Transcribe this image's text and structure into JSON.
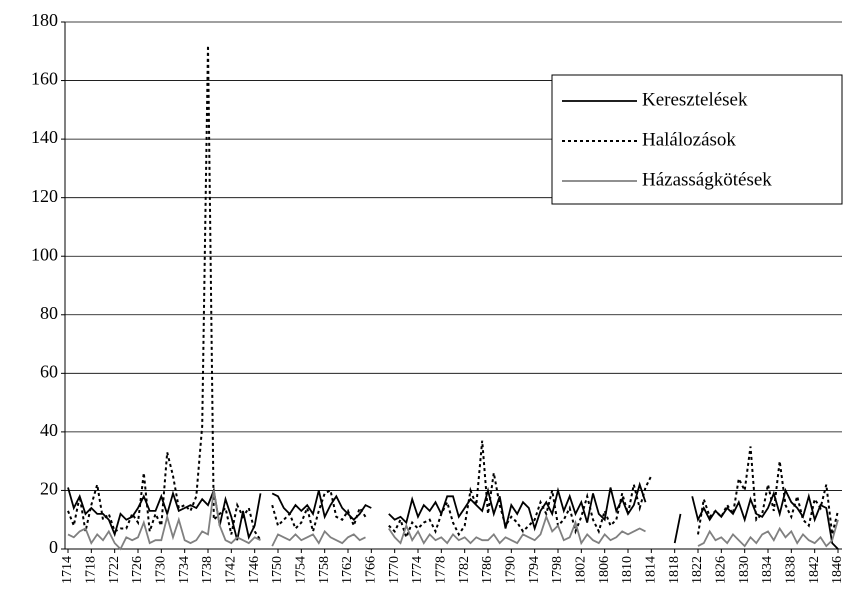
{
  "chart_data": {
    "type": "line",
    "x": [
      1714,
      1715,
      1716,
      1717,
      1718,
      1719,
      1720,
      1721,
      1722,
      1723,
      1724,
      1725,
      1726,
      1727,
      1728,
      1729,
      1730,
      1731,
      1732,
      1733,
      1734,
      1735,
      1736,
      1737,
      1738,
      1739,
      1740,
      1741,
      1742,
      1743,
      1744,
      1745,
      1746,
      1747,
      1748,
      1749,
      1750,
      1751,
      1752,
      1753,
      1754,
      1755,
      1756,
      1757,
      1758,
      1759,
      1760,
      1761,
      1762,
      1763,
      1764,
      1765,
      1766,
      1767,
      1768,
      1769,
      1770,
      1771,
      1772,
      1773,
      1774,
      1775,
      1776,
      1777,
      1778,
      1779,
      1780,
      1781,
      1782,
      1783,
      1784,
      1785,
      1786,
      1787,
      1788,
      1789,
      1790,
      1791,
      1792,
      1793,
      1794,
      1795,
      1796,
      1797,
      1798,
      1799,
      1800,
      1801,
      1802,
      1803,
      1804,
      1805,
      1806,
      1807,
      1808,
      1809,
      1810,
      1811,
      1812,
      1813,
      1814,
      1815,
      1816,
      1817,
      1818,
      1819,
      1820,
      1821,
      1822,
      1823,
      1824,
      1825,
      1826,
      1827,
      1828,
      1829,
      1830,
      1831,
      1832,
      1833,
      1834,
      1835,
      1836,
      1837,
      1838,
      1839,
      1840,
      1841,
      1842,
      1843,
      1844,
      1845,
      1846
    ],
    "series": [
      {
        "name": "Keresztelések",
        "color": "#000000",
        "dash": "solid",
        "values": [
          21,
          14,
          18,
          12,
          14,
          12,
          12,
          10,
          5,
          12,
          10,
          11,
          14,
          18,
          13,
          13,
          18,
          12,
          19,
          13,
          14,
          15,
          14,
          17,
          15,
          20,
          8,
          17,
          11,
          3,
          13,
          4,
          8,
          19,
          null,
          19,
          18,
          14,
          12,
          15,
          13,
          15,
          12,
          20,
          11,
          15,
          18,
          14,
          12,
          10,
          12,
          15,
          14,
          null,
          null,
          12,
          10,
          11,
          9,
          17,
          11,
          15,
          13,
          16,
          12,
          18,
          18,
          11,
          14,
          17,
          15,
          13,
          20,
          12,
          18,
          7,
          15,
          12,
          16,
          14,
          7,
          13,
          16,
          12,
          20,
          13,
          18,
          12,
          16,
          9,
          19,
          12,
          10,
          21,
          13,
          17,
          12,
          15,
          22,
          16,
          null,
          null,
          null,
          null,
          2,
          12,
          null,
          18,
          10,
          14,
          10,
          13,
          11,
          14,
          12,
          16,
          10,
          17,
          12,
          11,
          14,
          19,
          12,
          20,
          16,
          14,
          11,
          18,
          10,
          15,
          14,
          2,
          0
        ]
      },
      {
        "name": "Halálozások",
        "color": "#000000",
        "dash": "dotted",
        "values": [
          13,
          8,
          18,
          6,
          15,
          22,
          10,
          12,
          6,
          7,
          7,
          12,
          9,
          26,
          6,
          12,
          8,
          33,
          25,
          14,
          15,
          13,
          18,
          42,
          172,
          10,
          12,
          14,
          5,
          15,
          11,
          14,
          6,
          3,
          null,
          15,
          8,
          10,
          12,
          7,
          9,
          14,
          6,
          13,
          19,
          20,
          11,
          10,
          13,
          8,
          14,
          11,
          null,
          null,
          null,
          8,
          6,
          10,
          4,
          9,
          7,
          9,
          10,
          6,
          12,
          16,
          9,
          5,
          8,
          20,
          15,
          37,
          12,
          26,
          15,
          8,
          11,
          9,
          6,
          8,
          10,
          16,
          12,
          20,
          8,
          10,
          14,
          6,
          11,
          18,
          10,
          6,
          13,
          8,
          10,
          19,
          12,
          22,
          14,
          21,
          25,
          null,
          null,
          null,
          null,
          null,
          null,
          null,
          5,
          17,
          11,
          13,
          11,
          15,
          12,
          24,
          20,
          35,
          10,
          12,
          22,
          13,
          30,
          15,
          11,
          18,
          10,
          8,
          17,
          14,
          22,
          5,
          13
        ]
      },
      {
        "name": "Házasságkötések",
        "color": "#808080",
        "dash": "solid",
        "values": [
          5,
          4,
          6,
          7,
          2,
          5,
          3,
          6,
          2,
          0,
          4,
          3,
          4,
          9,
          2,
          3,
          3,
          11,
          4,
          10,
          3,
          2,
          3,
          6,
          5,
          20,
          8,
          3,
          2,
          4,
          3,
          2,
          4,
          3,
          null,
          1,
          5,
          4,
          3,
          5,
          3,
          4,
          5,
          2,
          6,
          4,
          3,
          2,
          4,
          5,
          3,
          4,
          null,
          null,
          null,
          7,
          4,
          2,
          8,
          3,
          6,
          2,
          5,
          3,
          4,
          2,
          5,
          3,
          4,
          2,
          4,
          3,
          3,
          5,
          2,
          4,
          3,
          2,
          5,
          4,
          3,
          5,
          11,
          6,
          8,
          3,
          4,
          9,
          2,
          5,
          3,
          2,
          5,
          3,
          4,
          6,
          5,
          6,
          7,
          6,
          null,
          null,
          null,
          null,
          null,
          null,
          null,
          null,
          1,
          2,
          6,
          3,
          4,
          2,
          5,
          3,
          1,
          4,
          2,
          5,
          6,
          3,
          7,
          4,
          6,
          2,
          5,
          3,
          2,
          4,
          1,
          3,
          10
        ]
      }
    ],
    "xlim": [
      1714,
      1846
    ],
    "xticks": [
      1714,
      1718,
      1722,
      1726,
      1730,
      1734,
      1738,
      1742,
      1746,
      1750,
      1754,
      1758,
      1762,
      1766,
      1770,
      1774,
      1778,
      1782,
      1786,
      1790,
      1794,
      1798,
      1802,
      1806,
      1810,
      1814,
      1818,
      1822,
      1826,
      1830,
      1834,
      1838,
      1842,
      1846
    ],
    "ylim": [
      0,
      180
    ],
    "yticks": [
      0,
      20,
      40,
      60,
      80,
      100,
      120,
      140,
      160,
      180
    ],
    "grid": true,
    "legend": "upper right"
  }
}
